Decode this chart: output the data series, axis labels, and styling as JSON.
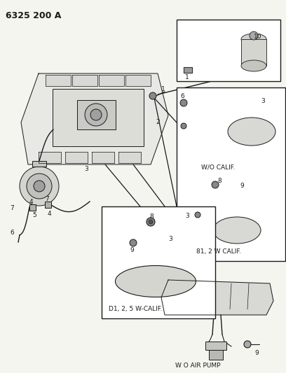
{
  "title": "6325 200 A",
  "bg_color": "#f5f5f0",
  "fg_color": "#1a1a1a",
  "white": "#ffffff",
  "figsize": [
    4.08,
    5.33
  ],
  "dpi": 100,
  "labels": {
    "wo_calif": "W/O CALIF.",
    "b1_2w_calif": "81, 2 W CALIF.",
    "d1_2_5w_calif": "D1, 2, 5 W-CALIF.",
    "wo_air_pump": "W O AIR PUMP"
  }
}
